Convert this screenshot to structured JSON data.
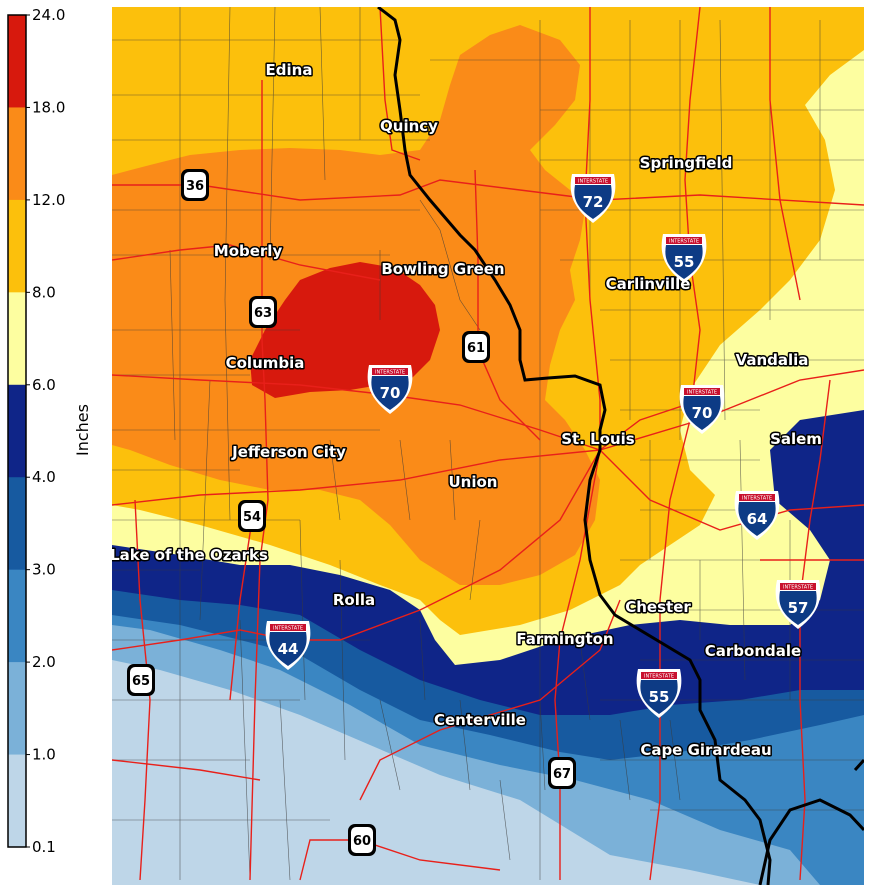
{
  "legend": {
    "title": "Inches",
    "ticks": [
      "24.0",
      "18.0",
      "12.0",
      "8.0",
      "6.0",
      "4.0",
      "3.0",
      "2.0",
      "1.0",
      "0.1"
    ],
    "colors": [
      "#d7190d",
      "#fa8b18",
      "#fcc00c",
      "#fdfea0",
      "#0f2588",
      "#175aa0",
      "#3a86c2",
      "#7bb1d8",
      "#bed6e8"
    ]
  },
  "cities": [
    "Edina",
    "Quincy",
    "Springfield",
    "Moberly",
    "Bowling Green",
    "Carlinville",
    "Columbia",
    "Vandalia",
    "St. Louis",
    "Salem",
    "Jefferson City",
    "Union",
    "Lake of the Ozarks",
    "Rolla",
    "Chester",
    "Farmington",
    "Carbondale",
    "Centerville",
    "Cape Girardeau"
  ],
  "us_routes": [
    "36",
    "63",
    "61",
    "54",
    "65",
    "67",
    "60"
  ],
  "interstates": {
    "banner": "INTERSTATE",
    "numbers": [
      "72",
      "55",
      "70",
      "70",
      "64",
      "57",
      "44",
      "55"
    ]
  }
}
